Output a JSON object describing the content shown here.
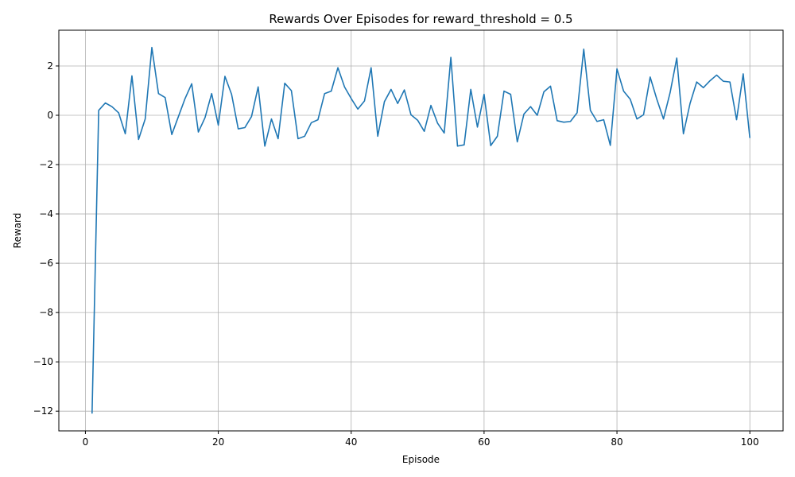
{
  "chart_data": {
    "type": "line",
    "title": "Rewards Over Episodes for reward_threshold = 0.5",
    "xlabel": "Episode",
    "ylabel": "Reward",
    "xlim": [
      -4,
      105
    ],
    "ylim": [
      -12.8,
      3.45
    ],
    "xticks": [
      0,
      20,
      40,
      60,
      80,
      100
    ],
    "yticks": [
      -12,
      -10,
      -8,
      -6,
      -4,
      -2,
      0,
      2
    ],
    "grid": true,
    "series": [
      {
        "color": "#1f77b4",
        "x": [
          1,
          2,
          3,
          4,
          5,
          6,
          7,
          8,
          9,
          10,
          11,
          12,
          13,
          14,
          15,
          16,
          17,
          18,
          19,
          20,
          21,
          22,
          23,
          24,
          25,
          26,
          27,
          28,
          29,
          30,
          31,
          32,
          33,
          34,
          35,
          36,
          37,
          38,
          39,
          40,
          41,
          42,
          43,
          44,
          45,
          46,
          47,
          48,
          49,
          50,
          51,
          52,
          53,
          54,
          55,
          56,
          57,
          58,
          59,
          60,
          61,
          62,
          63,
          64,
          65,
          66,
          67,
          68,
          69,
          70,
          71,
          72,
          73,
          74,
          75,
          76,
          77,
          78,
          79,
          80,
          81,
          82,
          83,
          84,
          85,
          86,
          87,
          88,
          89,
          90,
          91,
          92,
          93,
          94,
          95,
          96,
          97,
          98,
          99,
          100
        ],
        "y": [
          -12.1,
          0.2,
          0.5,
          0.35,
          0.1,
          -0.75,
          1.6,
          -0.98,
          -0.15,
          2.75,
          0.88,
          0.72,
          -0.78,
          -0.05,
          0.68,
          1.28,
          -0.68,
          -0.1,
          0.88,
          -0.4,
          1.58,
          0.85,
          -0.55,
          -0.5,
          -0.05,
          1.15,
          -1.25,
          -0.15,
          -0.95,
          1.3,
          1.0,
          -0.95,
          -0.85,
          -0.3,
          -0.18,
          0.88,
          0.98,
          1.93,
          1.15,
          0.68,
          0.25,
          0.58,
          1.93,
          -0.85,
          0.55,
          1.05,
          0.48,
          1.03,
          0.02,
          -0.2,
          -0.65,
          0.4,
          -0.32,
          -0.72,
          2.35,
          -1.25,
          -1.2,
          1.05,
          -0.48,
          0.85,
          -1.23,
          -0.85,
          0.98,
          0.85,
          -1.08,
          0.05,
          0.35,
          0.0,
          0.95,
          1.18,
          -0.22,
          -0.28,
          -0.25,
          0.1,
          2.68,
          0.2,
          -0.25,
          -0.18,
          -1.22,
          1.88,
          0.98,
          0.65,
          -0.15,
          0.02,
          1.55,
          0.65,
          -0.15,
          0.92,
          2.32,
          -0.75,
          0.48,
          1.35,
          1.12,
          1.4,
          1.63,
          1.38,
          1.35,
          -0.18,
          1.68,
          -0.92
        ]
      }
    ]
  }
}
